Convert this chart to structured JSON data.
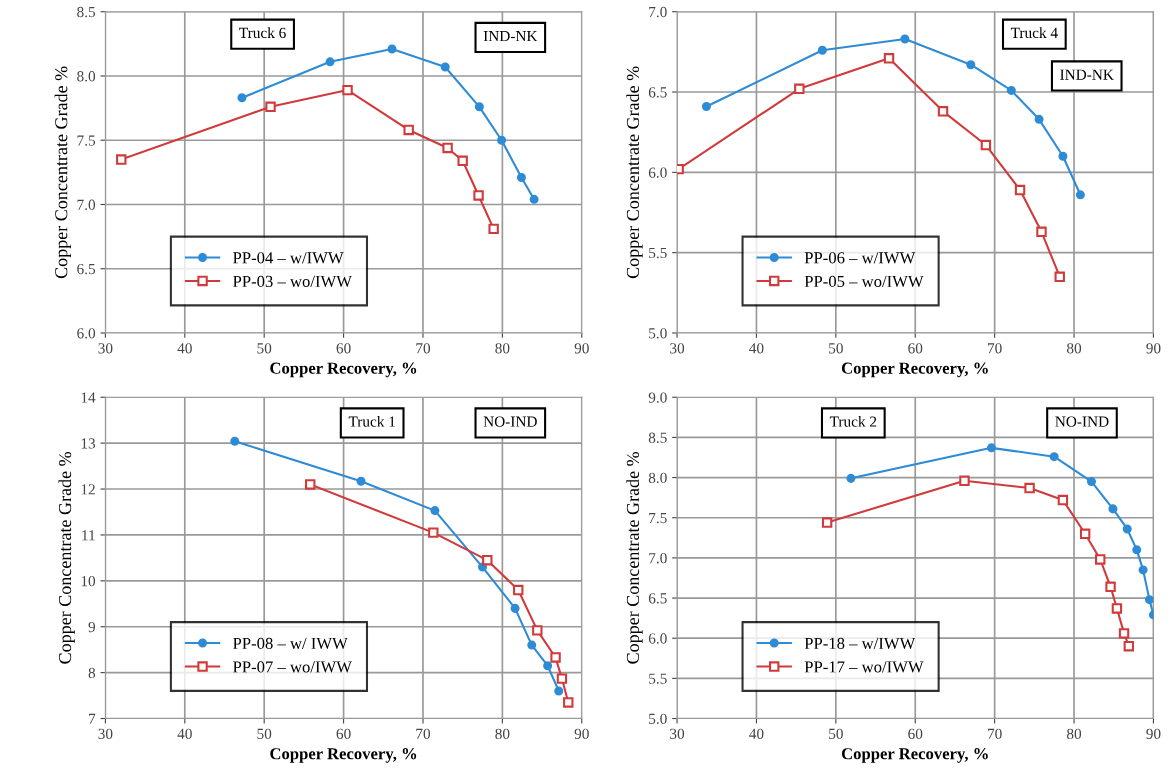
{
  "chart_data": [
    {
      "type": "line",
      "xlabel": "Copper Recovery, %",
      "ylabel": "Copper Concentrate Grade %",
      "annotations": [
        "Truck 6",
        "IND-NK"
      ],
      "xlim": [
        30,
        90
      ],
      "xticks": [
        30,
        40,
        50,
        60,
        70,
        80,
        90
      ],
      "ylim": [
        6.0,
        8.5
      ],
      "yticks": [
        {
          "value": 6.0,
          "label": "6.0"
        },
        {
          "value": 6.5,
          "label": "6.5"
        },
        {
          "value": 7.0,
          "label": "7.0"
        },
        {
          "value": 7.5,
          "label": "7.5"
        },
        {
          "value": 8.0,
          "label": "8.0"
        },
        {
          "value": 8.5,
          "label": "8.5"
        }
      ],
      "grid": true,
      "legend": "bottom left",
      "series": [
        {
          "name": "PP-04 – w/IWW",
          "color": "#2e8bd6",
          "marker": "circle",
          "x": [
            47.2,
            58.3,
            66.1,
            72.8,
            77.1,
            79.9,
            82.4,
            84.0
          ],
          "values": [
            7.83,
            8.11,
            8.21,
            8.07,
            7.76,
            7.5,
            7.21,
            7.04
          ]
        },
        {
          "name": "PP-03 – wo/IWW",
          "color": "#d03a3a",
          "marker": "square",
          "x": [
            32.0,
            50.8,
            60.5,
            68.2,
            73.1,
            75.0,
            77.0,
            78.9
          ],
          "values": [
            7.35,
            7.76,
            7.89,
            7.58,
            7.44,
            7.34,
            7.07,
            6.81
          ]
        }
      ]
    },
    {
      "type": "line",
      "xlabel": "Copper Recovery, %",
      "ylabel": "Copper Concentrate Grade %",
      "annotations": [
        "Truck 4",
        "IND-NK"
      ],
      "xlim": [
        30,
        90
      ],
      "xticks": [
        30,
        40,
        50,
        60,
        70,
        80,
        90
      ],
      "ylim": [
        5.0,
        7.0
      ],
      "yticks": [
        {
          "value": 5.0,
          "label": "5.0"
        },
        {
          "value": 5.5,
          "label": "5.5"
        },
        {
          "value": 6.0,
          "label": "6.0"
        },
        {
          "value": 6.5,
          "label": "6.5"
        },
        {
          "value": 7.0,
          "label": "7.0"
        }
      ],
      "grid": true,
      "legend": "bottom left",
      "series": [
        {
          "name": "PP-06 – w/IWW",
          "color": "#2e8bd6",
          "marker": "circle",
          "x": [
            33.7,
            48.3,
            58.7,
            67.0,
            72.1,
            75.6,
            78.6,
            80.8
          ],
          "values": [
            6.41,
            6.76,
            6.83,
            6.67,
            6.51,
            6.33,
            6.1,
            5.86
          ]
        },
        {
          "name": "PP-05 – wo/IWW",
          "color": "#d03a3a",
          "marker": "square",
          "x": [
            30.2,
            45.4,
            56.7,
            63.5,
            68.9,
            73.2,
            75.9,
            78.2
          ],
          "values": [
            6.02,
            6.52,
            6.71,
            6.38,
            6.17,
            5.89,
            5.63,
            5.35
          ]
        }
      ]
    },
    {
      "type": "line",
      "xlabel": "Copper Recovery, %",
      "ylabel": "Copper Concentrate Grade %",
      "annotations": [
        "Truck 1",
        "NO-IND"
      ],
      "xlim": [
        30,
        90
      ],
      "xticks": [
        30,
        40,
        50,
        60,
        70,
        80,
        90
      ],
      "ylim": [
        7,
        14
      ],
      "yticks": [
        7,
        8,
        9,
        10,
        11,
        12,
        13,
        14
      ],
      "grid": true,
      "legend": "bottom left",
      "series": [
        {
          "name": "PP-08 – w/ IWW",
          "color": "#2e8bd6",
          "marker": "circle",
          "x": [
            46.3,
            62.2,
            71.5,
            77.5,
            81.6,
            83.7,
            85.7,
            87.1
          ],
          "values": [
            13.04,
            12.17,
            11.53,
            10.3,
            9.4,
            8.6,
            8.15,
            7.6
          ]
        },
        {
          "name": "PP-07 – wo/IWW",
          "color": "#d03a3a",
          "marker": "square",
          "x": [
            55.8,
            71.3,
            78.1,
            82.0,
            84.4,
            86.7,
            87.5,
            88.3
          ],
          "values": [
            12.1,
            11.05,
            10.45,
            9.8,
            8.92,
            8.33,
            7.87,
            7.35
          ]
        }
      ]
    },
    {
      "type": "line",
      "xlabel": "Copper Recovery, %",
      "ylabel": "Copper Concentrate Grade %",
      "annotations": [
        "Truck 2",
        "NO-IND"
      ],
      "xlim": [
        30,
        90
      ],
      "xticks": [
        30,
        40,
        50,
        60,
        70,
        80,
        90
      ],
      "ylim": [
        5.0,
        9.0
      ],
      "yticks": [
        {
          "value": 5.0,
          "label": "5.0"
        },
        {
          "value": 5.5,
          "label": "5.5"
        },
        {
          "value": 6.0,
          "label": "6.0"
        },
        {
          "value": 6.5,
          "label": "6.5"
        },
        {
          "value": 7.0,
          "label": "7.0"
        },
        {
          "value": 7.5,
          "label": "7.5"
        },
        {
          "value": 8.0,
          "label": "8.0"
        },
        {
          "value": 8.5,
          "label": "8.5"
        },
        {
          "value": 9.0,
          "label": "9.0"
        }
      ],
      "grid": true,
      "legend": "bottom left",
      "series": [
        {
          "name": "PP-18 – w/IWW",
          "color": "#2e8bd6",
          "marker": "circle",
          "x": [
            51.9,
            69.6,
            77.5,
            82.2,
            84.9,
            86.7,
            87.9,
            88.7,
            89.5,
            90.0
          ],
          "values": [
            7.99,
            8.37,
            8.26,
            7.95,
            7.61,
            7.36,
            7.1,
            6.85,
            6.48,
            6.29
          ]
        },
        {
          "name": "PP-17 – wo/IWW",
          "color": "#d03a3a",
          "marker": "square",
          "x": [
            48.9,
            66.2,
            74.4,
            78.6,
            81.4,
            83.3,
            84.6,
            85.4,
            86.3,
            86.9
          ],
          "values": [
            7.44,
            7.96,
            7.87,
            7.72,
            7.3,
            6.98,
            6.64,
            6.37,
            6.06,
            5.9
          ]
        }
      ]
    }
  ]
}
